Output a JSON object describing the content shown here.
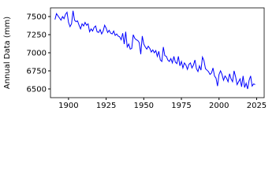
{
  "chart_data": {
    "type": "line",
    "y_label": "Annual Data (mm)",
    "color": "#0000ff",
    "x": [
      1891,
      1892,
      1893,
      1894,
      1895,
      1896,
      1897,
      1898,
      1899,
      1900,
      1901,
      1902,
      1903,
      1904,
      1905,
      1906,
      1907,
      1908,
      1909,
      1910,
      1911,
      1912,
      1913,
      1914,
      1915,
      1916,
      1917,
      1918,
      1919,
      1920,
      1921,
      1922,
      1923,
      1924,
      1925,
      1926,
      1927,
      1928,
      1929,
      1930,
      1931,
      1932,
      1933,
      1934,
      1935,
      1936,
      1937,
      1938,
      1939,
      1940,
      1941,
      1942,
      1943,
      1944,
      1945,
      1946,
      1947,
      1948,
      1949,
      1950,
      1951,
      1952,
      1953,
      1954,
      1955,
      1956,
      1957,
      1958,
      1959,
      1960,
      1961,
      1962,
      1963,
      1964,
      1965,
      1966,
      1967,
      1968,
      1969,
      1970,
      1971,
      1972,
      1973,
      1974,
      1975,
      1976,
      1977,
      1978,
      1979,
      1980,
      1981,
      1982,
      1983,
      1984,
      1985,
      1986,
      1987,
      1988,
      1989,
      1990,
      1991,
      1992,
      1993,
      1994,
      1995,
      1996,
      1997,
      1998,
      1999,
      2000,
      2001,
      2002,
      2003,
      2004,
      2005,
      2006,
      2007,
      2008,
      2009,
      2010,
      2011,
      2012,
      2013,
      2014,
      2015,
      2016,
      2017,
      2018,
      2019,
      2020,
      2021,
      2022,
      2023,
      2024
    ],
    "values": [
      7460,
      7540,
      7510,
      7480,
      7450,
      7500,
      7470,
      7530,
      7560,
      7420,
      7360,
      7400,
      7580,
      7450,
      7430,
      7440,
      7380,
      7330,
      7400,
      7370,
      7420,
      7380,
      7400,
      7290,
      7330,
      7300,
      7350,
      7370,
      7290,
      7280,
      7320,
      7260,
      7300,
      7380,
      7340,
      7280,
      7310,
      7270,
      7260,
      7300,
      7240,
      7260,
      7230,
      7220,
      7180,
      7270,
      7120,
      7290,
      7080,
      7120,
      7050,
      7060,
      7250,
      7200,
      7180,
      7170,
      7140,
      6980,
      7230,
      7120,
      7080,
      7050,
      7090,
      7060,
      7010,
      7040,
      7000,
      7030,
      6950,
      7020,
      6900,
      6880,
      7080,
      6960,
      6950,
      6900,
      6880,
      6920,
      6860,
      6950,
      6870,
      6850,
      6950,
      6820,
      6880,
      6790,
      6860,
      6830,
      6770,
      6840,
      6860,
      6790,
      6830,
      6900,
      6780,
      6740,
      6820,
      6760,
      6940,
      6890,
      6780,
      6760,
      6740,
      6700,
      6720,
      6790,
      6680,
      6650,
      6540,
      6700,
      6750,
      6700,
      6620,
      6680,
      6650,
      6600,
      6710,
      6640,
      6600,
      6750,
      6670,
      6560,
      6600,
      6640,
      6530,
      6680,
      6520,
      6580,
      6500,
      6620,
      6680,
      6540,
      6570,
      6560
    ],
    "xlim": [
      1888,
      2030
    ],
    "xticks": [
      1900,
      1925,
      1950,
      1975,
      2000,
      2025
    ],
    "ylim": [
      6380,
      7620
    ],
    "yticks": [
      6500,
      6750,
      7000,
      7250,
      7500
    ]
  }
}
